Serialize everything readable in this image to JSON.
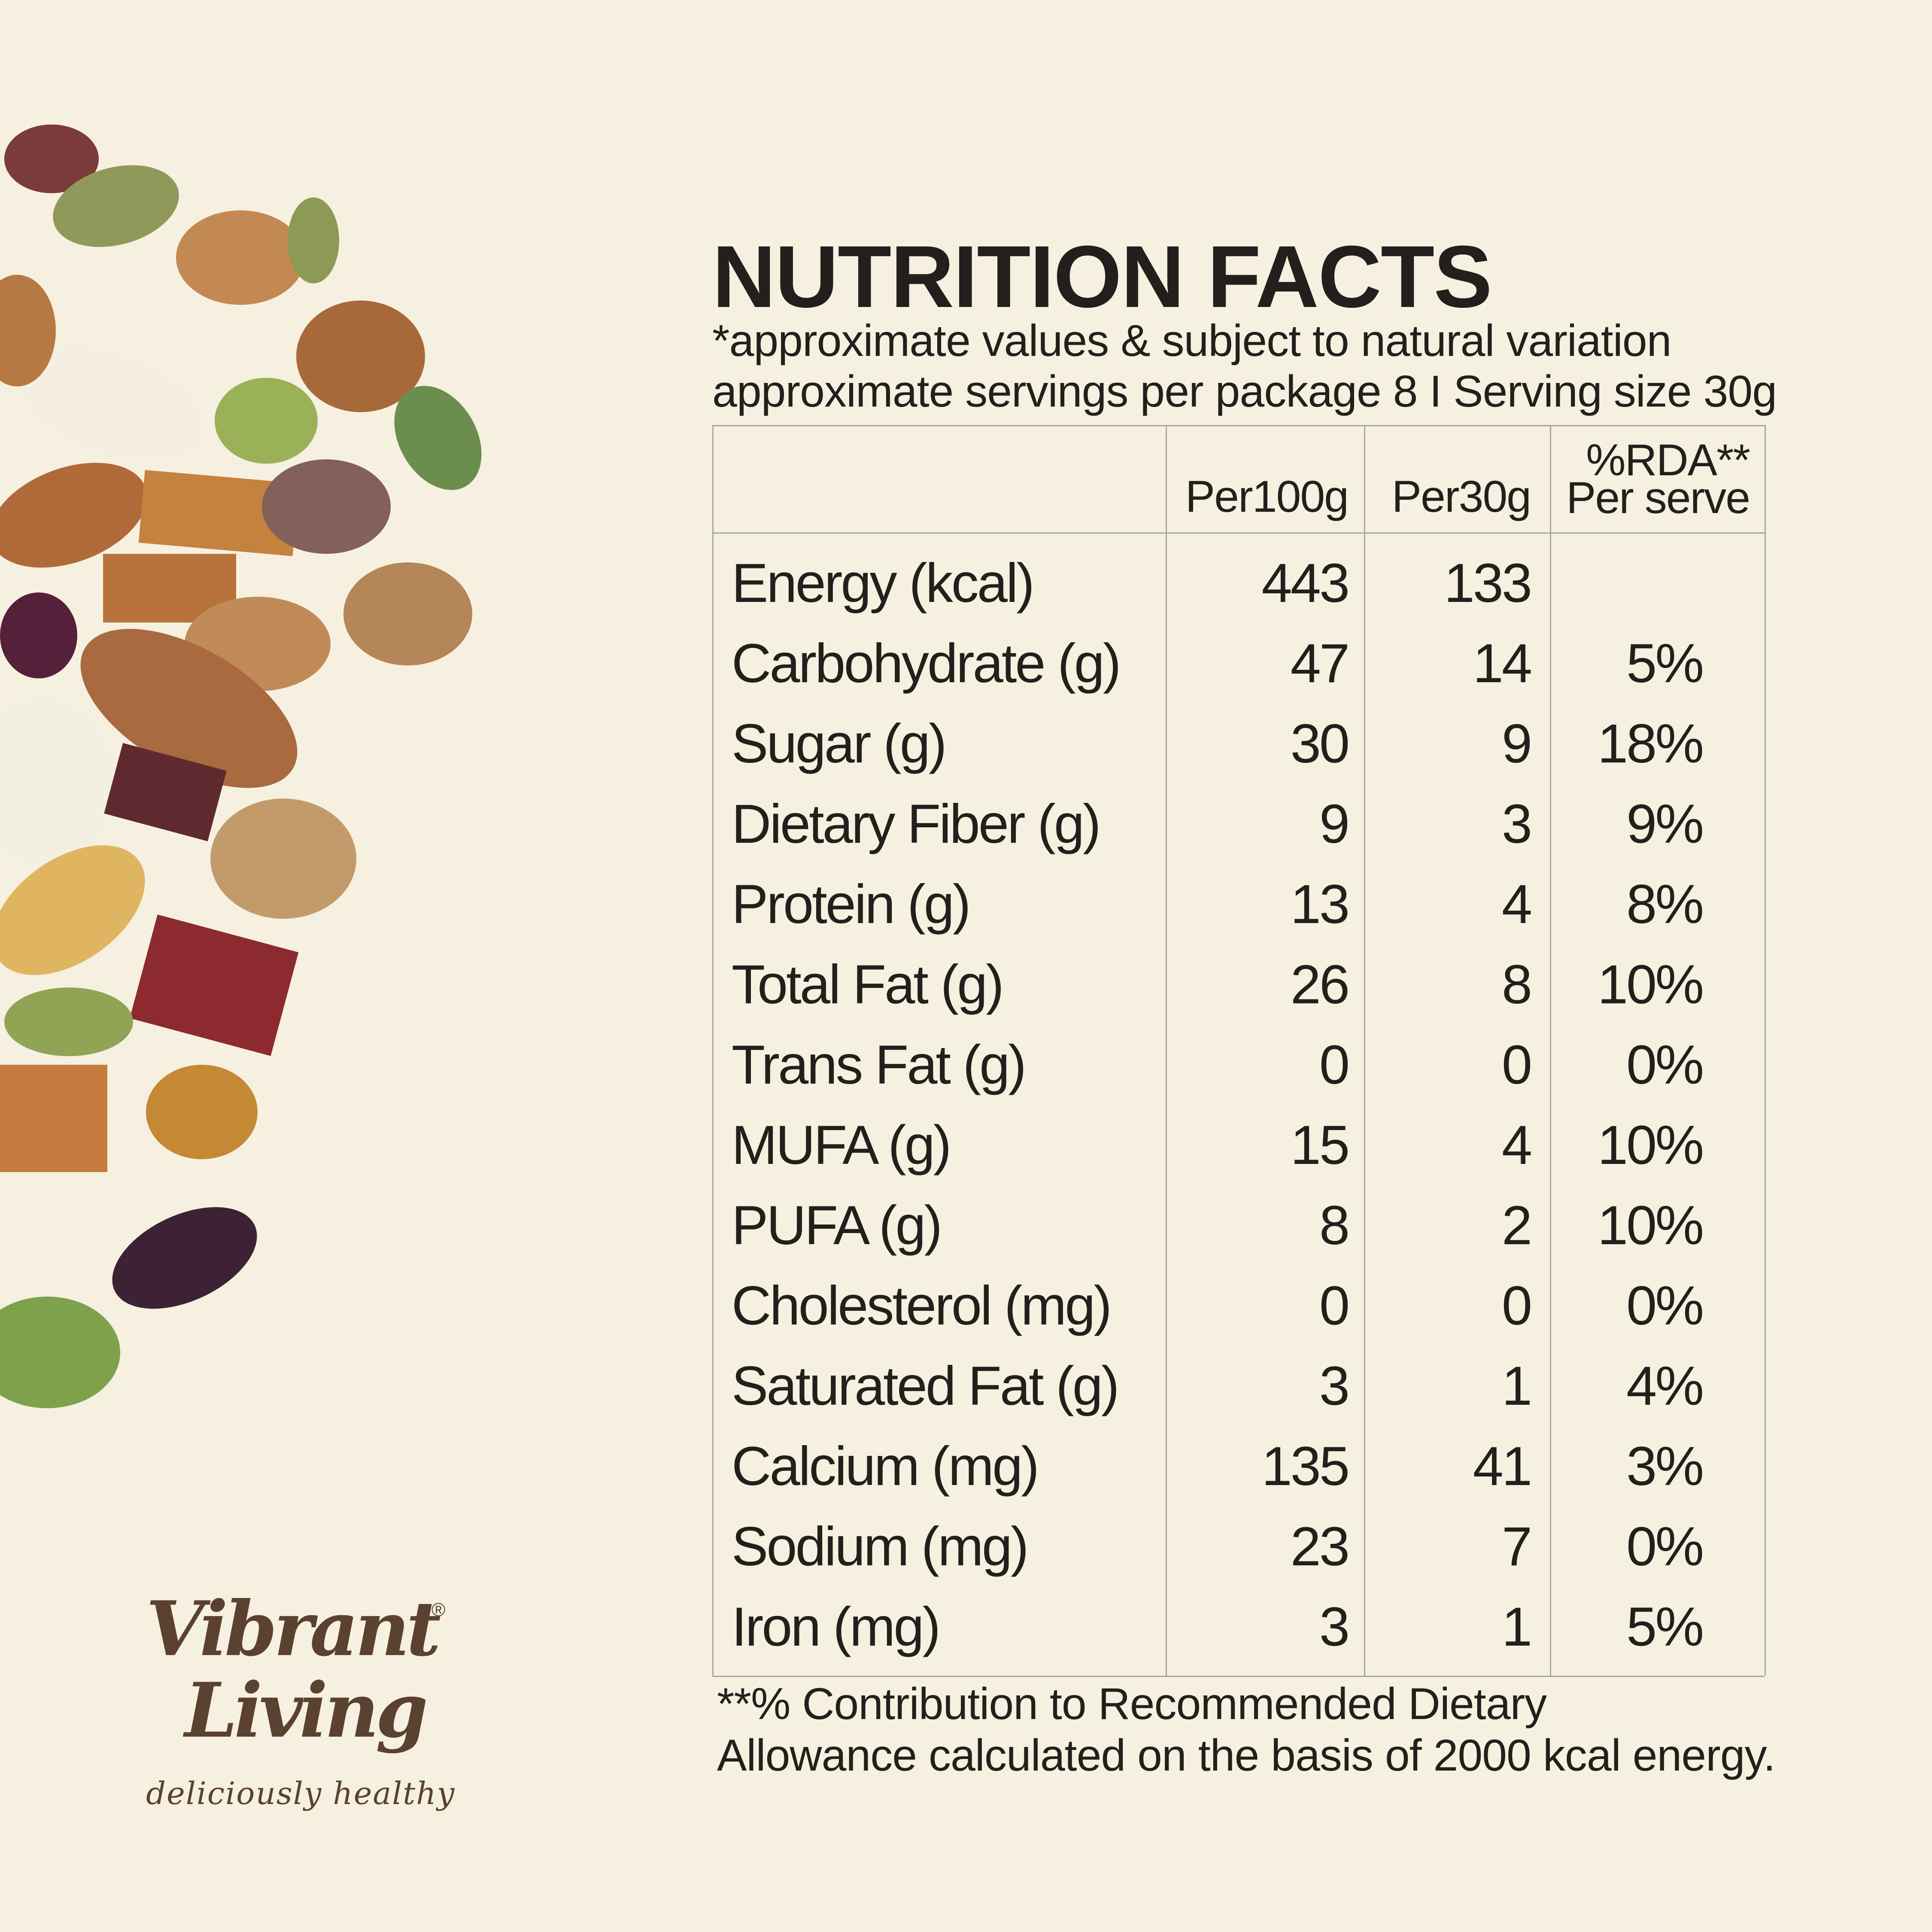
{
  "header": {
    "title": "NUTRITION FACTS",
    "notes": [
      "*approximate values & subject to natural variation",
      "approximate servings per package 8 I Serving size 30g"
    ]
  },
  "table": {
    "columns": [
      "Per100g",
      "Per30g"
    ],
    "rda_header": [
      "%RDA**",
      "Per serve"
    ],
    "rows": [
      [
        "Energy (kcal)",
        "443",
        "133"
      ],
      [
        "Carbohydrate (g)",
        "47",
        "14",
        "5%"
      ],
      [
        "Sugar (g)",
        "30",
        "9",
        "18%"
      ],
      [
        "Dietary Fiber (g)",
        "9",
        "3",
        "9%"
      ],
      [
        "Protein (g)",
        "13",
        "4",
        "8%"
      ],
      [
        "Total Fat (g)",
        "26",
        "8",
        "10%"
      ],
      [
        "Trans Fat (g)",
        "0",
        "0",
        "0%"
      ],
      [
        "MUFA (g)",
        "15",
        "4",
        "10%"
      ],
      [
        "PUFA (g)",
        "8",
        "2",
        "10%"
      ],
      [
        "Cholesterol (mg)",
        "0",
        "0",
        "0%"
      ],
      [
        "Saturated Fat (g)",
        "3",
        "1",
        "4%"
      ],
      [
        "Calcium (mg)",
        "135",
        "41",
        "3%"
      ],
      [
        "Sodium (mg)",
        "23",
        "7",
        "0%"
      ],
      [
        "Iron (mg)",
        "3",
        "1",
        "5%"
      ]
    ]
  },
  "footnote": [
    "**% Contribution to Recommended Dietary",
    "Allowance calculated on the basis of 2000 kcal energy."
  ],
  "brand": {
    "name_lines": [
      "Vibrant",
      "Living"
    ],
    "registered": "®",
    "tagline": "deliciously healthy"
  }
}
